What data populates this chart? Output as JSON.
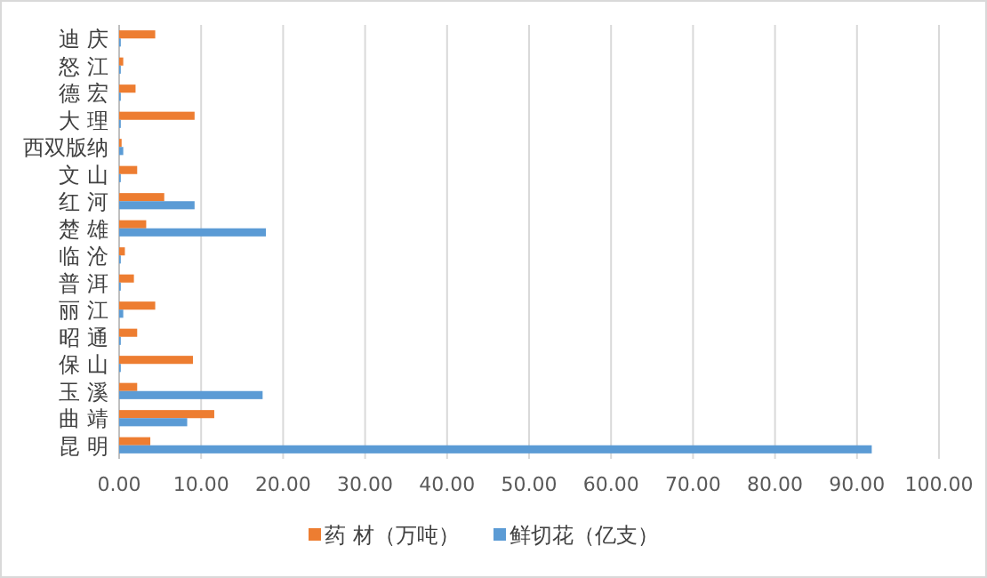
{
  "chart_data": {
    "type": "bar",
    "orientation": "horizontal",
    "categories": [
      "迪 庆",
      "怒 江",
      "德 宏",
      "大 理",
      "西双版纳",
      "文 山",
      "红 河",
      "楚 雄",
      "临 沧",
      "普 洱",
      "丽 江",
      "昭 通",
      "保 山",
      "玉 溪",
      "曲 靖",
      "昆 明"
    ],
    "series": [
      {
        "name": "药 材（万吨）",
        "color": "#ed7d31",
        "values": [
          4.4,
          0.5,
          2.0,
          9.2,
          0.3,
          2.2,
          5.5,
          3.3,
          0.7,
          1.8,
          4.4,
          2.2,
          9.0,
          2.2,
          11.6,
          3.8
        ]
      },
      {
        "name": "鲜切花（亿支）",
        "color": "#5b9bd5",
        "values": [
          0.2,
          0.2,
          0.2,
          0.2,
          0.5,
          0.2,
          9.2,
          17.9,
          0.2,
          0.2,
          0.5,
          0.2,
          0.2,
          17.5,
          8.3,
          91.8
        ]
      }
    ],
    "xlim": [
      0,
      100
    ],
    "xticks": [
      {
        "value": 0,
        "label": "0.00"
      },
      {
        "value": 10,
        "label": "10.00"
      },
      {
        "value": 20,
        "label": "20.00"
      },
      {
        "value": 30,
        "label": "30.00"
      },
      {
        "value": 40,
        "label": "40.00"
      },
      {
        "value": 50,
        "label": "50.00"
      },
      {
        "value": 60,
        "label": "60.00"
      },
      {
        "value": 70,
        "label": "70.00"
      },
      {
        "value": 80,
        "label": "80.00"
      },
      {
        "value": 90,
        "label": "90.00"
      },
      {
        "value": 100,
        "label": "100.00"
      }
    ],
    "grid": "x",
    "legend": "bottom"
  }
}
